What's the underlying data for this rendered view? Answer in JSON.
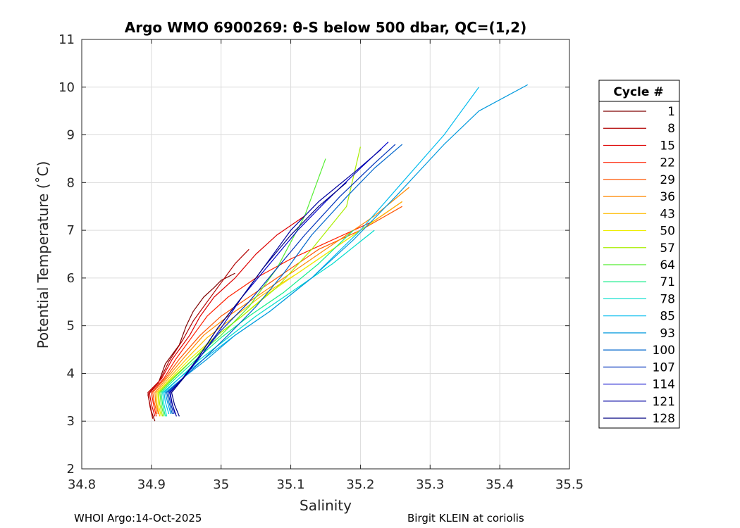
{
  "chart_data": {
    "type": "line",
    "title": "Argo WMO 6900269: θ-S below 500 dbar,  QC=(1,2)",
    "xlabel": "Salinity",
    "ylabel": "Potential Temperature (˚C)",
    "xlim": [
      34.8,
      35.5
    ],
    "ylim": [
      2,
      11
    ],
    "xticks": [
      "34.8",
      "34.9",
      "35",
      "35.1",
      "35.2",
      "35.3",
      "35.4",
      "35.5"
    ],
    "yticks": [
      "2",
      "3",
      "4",
      "5",
      "6",
      "7",
      "8",
      "9",
      "10",
      "11"
    ],
    "grid": true,
    "legend_title": "Cycle #",
    "legend_position": "right",
    "series": [
      {
        "name": "1",
        "color": "#7f0000",
        "x": [
          34.905,
          34.9,
          34.895,
          34.91,
          34.92,
          34.94,
          34.95,
          34.96,
          34.975,
          34.99,
          35.0,
          35.02
        ],
        "y": [
          3.0,
          3.2,
          3.55,
          3.8,
          4.2,
          4.6,
          5.0,
          5.3,
          5.6,
          5.8,
          5.95,
          6.1
        ]
      },
      {
        "name": "8",
        "color": "#b00000",
        "x": [
          34.902,
          34.898,
          34.895,
          34.912,
          34.925,
          34.945,
          34.96,
          34.98,
          35.0,
          35.02,
          35.04
        ],
        "y": [
          3.05,
          3.3,
          3.6,
          3.85,
          4.25,
          4.7,
          5.1,
          5.5,
          5.9,
          6.3,
          6.6
        ]
      },
      {
        "name": "15",
        "color": "#dd0000",
        "x": [
          34.905,
          34.9,
          34.897,
          34.915,
          34.93,
          34.955,
          34.97,
          34.99,
          35.02,
          35.05,
          35.08,
          35.12
        ],
        "y": [
          3.1,
          3.35,
          3.6,
          3.9,
          4.3,
          4.8,
          5.2,
          5.6,
          6.0,
          6.5,
          6.9,
          7.3
        ]
      },
      {
        "name": "22",
        "color": "#ff2000",
        "x": [
          34.907,
          34.903,
          34.9,
          34.918,
          34.935,
          34.96,
          34.98,
          35.01,
          35.05,
          35.1,
          35.16,
          35.22,
          35.26
        ],
        "y": [
          3.1,
          3.35,
          3.6,
          3.9,
          4.3,
          4.8,
          5.2,
          5.6,
          6.0,
          6.4,
          6.8,
          7.2,
          7.6
        ]
      },
      {
        "name": "29",
        "color": "#ff5500",
        "x": [
          34.908,
          34.904,
          34.902,
          34.92,
          34.94,
          34.97,
          35.0,
          35.04,
          35.09,
          35.14,
          35.2,
          35.26
        ],
        "y": [
          3.15,
          3.4,
          3.6,
          3.9,
          4.3,
          4.8,
          5.2,
          5.6,
          6.1,
          6.6,
          7.0,
          7.5
        ]
      },
      {
        "name": "36",
        "color": "#ff8800",
        "x": [
          34.91,
          34.906,
          34.905,
          34.922,
          34.945,
          34.975,
          35.01,
          35.05,
          35.1,
          35.16,
          35.22,
          35.27
        ],
        "y": [
          3.15,
          3.4,
          3.6,
          3.9,
          4.3,
          4.8,
          5.2,
          5.6,
          6.1,
          6.7,
          7.3,
          7.9
        ]
      },
      {
        "name": "43",
        "color": "#ffbb00",
        "x": [
          34.912,
          34.908,
          34.907,
          34.925,
          34.95,
          34.98,
          35.02,
          35.06,
          35.11,
          35.16,
          35.21,
          35.26
        ],
        "y": [
          3.1,
          3.35,
          3.6,
          3.9,
          4.3,
          4.75,
          5.2,
          5.65,
          6.1,
          6.6,
          7.1,
          7.6
        ]
      },
      {
        "name": "50",
        "color": "#eeee00",
        "x": [
          34.914,
          34.91,
          34.909,
          34.928,
          34.955,
          34.99,
          35.03,
          35.07,
          35.12,
          35.17,
          35.22
        ],
        "y": [
          3.1,
          3.35,
          3.6,
          3.9,
          4.3,
          4.75,
          5.2,
          5.7,
          6.2,
          6.7,
          7.2
        ]
      },
      {
        "name": "57",
        "color": "#aaee00",
        "x": [
          34.916,
          34.912,
          34.91,
          34.93,
          34.96,
          34.99,
          35.03,
          35.08,
          35.13,
          35.18,
          35.2
        ],
        "y": [
          3.1,
          3.35,
          3.6,
          3.9,
          4.3,
          4.75,
          5.2,
          5.8,
          6.6,
          7.5,
          8.75
        ]
      },
      {
        "name": "64",
        "color": "#55ee33",
        "x": [
          34.918,
          34.914,
          34.912,
          34.932,
          34.96,
          35.0,
          35.04,
          35.08,
          35.12,
          35.15
        ],
        "y": [
          3.1,
          3.35,
          3.6,
          3.9,
          4.3,
          4.8,
          5.4,
          6.2,
          7.3,
          8.5
        ]
      },
      {
        "name": "71",
        "color": "#11ee88",
        "x": [
          34.92,
          34.916,
          34.914,
          34.935,
          34.965,
          35.0,
          35.04,
          35.09,
          35.14,
          35.19
        ],
        "y": [
          3.1,
          3.35,
          3.6,
          3.9,
          4.3,
          4.75,
          5.2,
          5.7,
          6.3,
          7.0
        ]
      },
      {
        "name": "78",
        "color": "#00ddcc",
        "x": [
          34.922,
          34.918,
          34.916,
          34.94,
          34.97,
          35.01,
          35.05,
          35.1,
          35.16,
          35.22
        ],
        "y": [
          3.1,
          3.35,
          3.6,
          3.9,
          4.3,
          4.75,
          5.2,
          5.7,
          6.3,
          7.0
        ]
      },
      {
        "name": "85",
        "color": "#00bbee",
        "x": [
          34.925,
          34.92,
          34.918,
          34.94,
          34.975,
          35.02,
          35.07,
          35.13,
          35.2,
          35.26,
          35.32,
          35.37
        ],
        "y": [
          3.15,
          3.4,
          3.6,
          3.9,
          4.3,
          4.8,
          5.3,
          6.0,
          7.0,
          8.0,
          9.0,
          10.0
        ]
      },
      {
        "name": "93",
        "color": "#0099dd",
        "x": [
          34.928,
          34.923,
          34.92,
          34.945,
          34.98,
          35.02,
          35.07,
          35.13,
          35.19,
          35.25,
          35.32,
          35.37,
          35.44
        ],
        "y": [
          3.15,
          3.4,
          3.6,
          3.9,
          4.3,
          4.8,
          5.3,
          6.0,
          6.8,
          7.7,
          8.8,
          9.5,
          10.05
        ]
      },
      {
        "name": "100",
        "color": "#0066cc",
        "x": [
          34.93,
          34.925,
          34.922,
          34.945,
          34.975,
          35.01,
          35.05,
          35.09,
          35.13,
          35.18,
          35.22,
          35.26
        ],
        "y": [
          3.15,
          3.4,
          3.6,
          3.9,
          4.3,
          4.8,
          5.4,
          6.1,
          6.9,
          7.7,
          8.3,
          8.8
        ]
      },
      {
        "name": "107",
        "color": "#0033bb",
        "x": [
          34.932,
          34.927,
          34.924,
          34.945,
          34.97,
          35.0,
          35.04,
          35.08,
          35.12,
          35.17,
          35.22,
          35.25
        ],
        "y": [
          3.15,
          3.4,
          3.6,
          3.9,
          4.35,
          4.9,
          5.5,
          6.2,
          6.9,
          7.7,
          8.4,
          8.8
        ]
      },
      {
        "name": "114",
        "color": "#0000cc",
        "x": [
          34.934,
          34.929,
          34.926,
          34.946,
          34.97,
          35.0,
          35.03,
          35.07,
          35.11,
          35.15,
          35.2,
          35.24
        ],
        "y": [
          3.15,
          3.4,
          3.6,
          3.9,
          4.35,
          4.95,
          5.6,
          6.3,
          7.0,
          7.6,
          8.3,
          8.85
        ]
      },
      {
        "name": "121",
        "color": "#0000a0",
        "x": [
          34.936,
          34.93,
          34.927,
          34.945,
          34.968,
          34.995,
          35.03,
          35.065,
          35.1,
          35.14,
          35.19,
          35.23
        ],
        "y": [
          3.1,
          3.35,
          3.6,
          3.9,
          4.35,
          4.95,
          5.6,
          6.3,
          7.0,
          7.6,
          8.2,
          8.7
        ]
      },
      {
        "name": "128",
        "color": "#000080",
        "x": [
          34.94,
          34.933,
          34.929,
          34.946,
          34.968,
          34.995,
          35.03,
          35.06,
          35.1,
          35.14,
          35.18
        ],
        "y": [
          3.1,
          3.35,
          3.6,
          3.9,
          4.35,
          4.95,
          5.6,
          6.2,
          6.9,
          7.5,
          8.0
        ]
      }
    ]
  },
  "footer": {
    "left": "WHOI Argo:14-Oct-2025",
    "right": "Birgit KLEIN at coriolis"
  }
}
